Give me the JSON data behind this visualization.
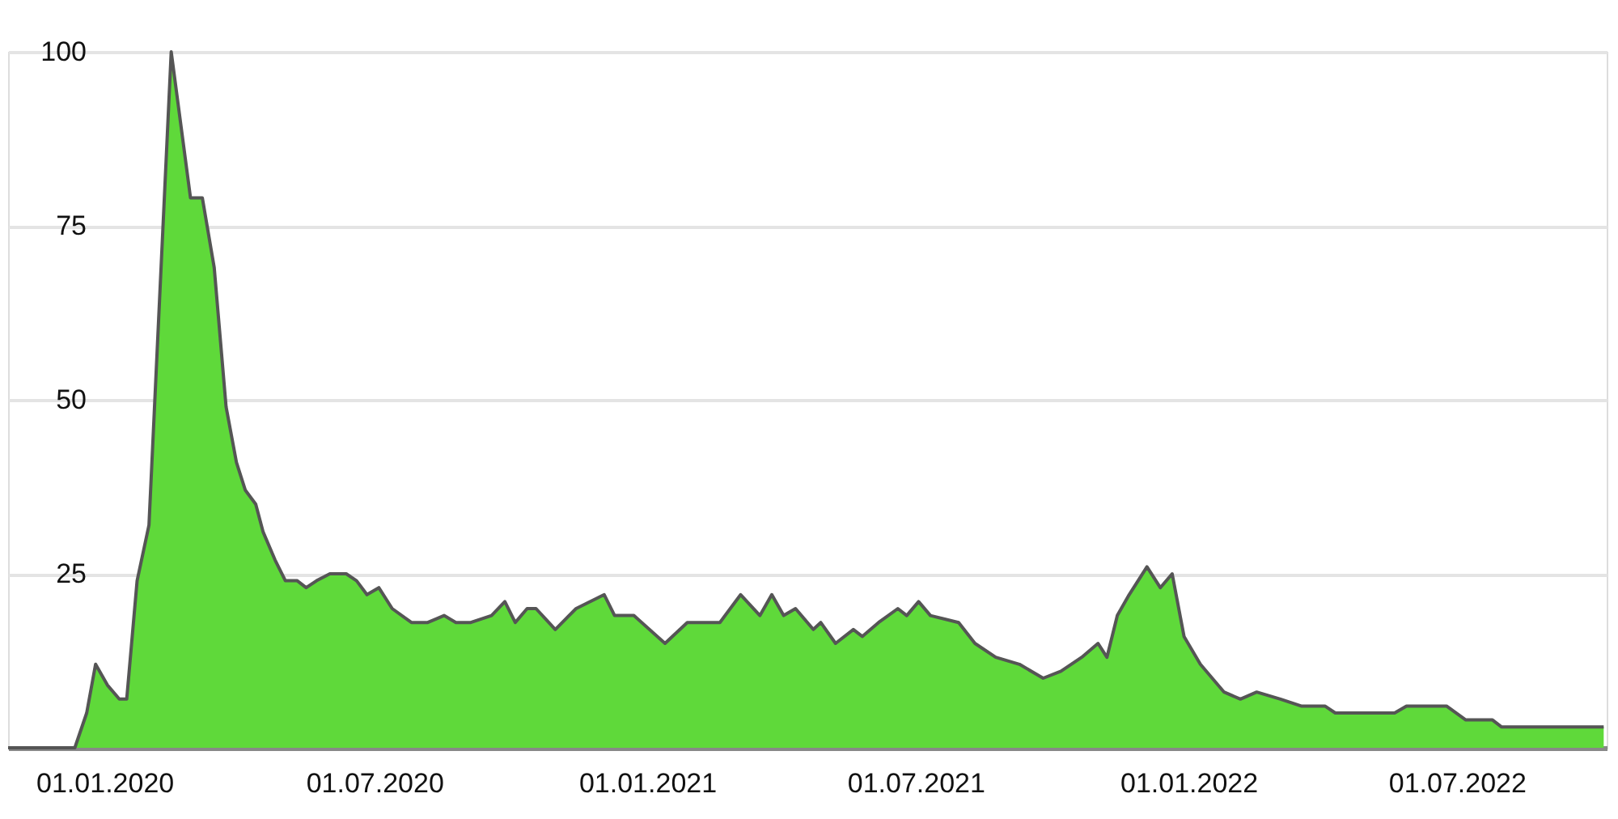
{
  "chart_data": {
    "type": "area",
    "x": [
      "2019-10-28",
      "2019-12-12",
      "2019-12-20",
      "2019-12-26",
      "2020-01-03",
      "2020-01-11",
      "2020-01-16",
      "2020-01-23",
      "2020-01-31",
      "2020-02-15",
      "2020-02-28",
      "2020-03-07",
      "2020-03-15",
      "2020-03-23",
      "2020-03-30",
      "2020-04-05",
      "2020-04-12",
      "2020-04-17",
      "2020-04-25",
      "2020-05-02",
      "2020-05-10",
      "2020-05-16",
      "2020-05-23",
      "2020-06-01",
      "2020-06-12",
      "2020-06-19",
      "2020-06-26",
      "2020-07-04",
      "2020-07-13",
      "2020-07-26",
      "2020-08-06",
      "2020-08-17",
      "2020-08-25",
      "2020-09-04",
      "2020-09-18",
      "2020-09-27",
      "2020-10-04",
      "2020-10-12",
      "2020-10-18",
      "2020-10-31",
      "2020-11-14",
      "2020-12-03",
      "2020-12-10",
      "2020-12-23",
      "2021-01-13",
      "2021-01-28",
      "2021-02-19",
      "2021-03-05",
      "2021-03-18",
      "2021-03-26",
      "2021-04-03",
      "2021-04-11",
      "2021-04-23",
      "2021-04-28",
      "2021-05-08",
      "2021-05-20",
      "2021-05-26",
      "2021-06-06",
      "2021-06-19",
      "2021-06-25",
      "2021-07-03",
      "2021-07-11",
      "2021-07-30",
      "2021-08-10",
      "2021-08-24",
      "2021-09-09",
      "2021-09-25",
      "2021-10-07",
      "2021-10-21",
      "2021-11-01",
      "2021-11-07",
      "2021-11-14",
      "2021-11-22",
      "2021-12-04",
      "2021-12-13",
      "2021-12-21",
      "2021-12-29",
      "2022-01-09",
      "2022-01-25",
      "2022-02-05",
      "2022-02-16",
      "2022-03-04",
      "2022-03-18",
      "2022-04-03",
      "2022-04-10",
      "2022-05-20",
      "2022-05-28",
      "2022-06-24",
      "2022-07-07",
      "2022-07-25",
      "2022-07-31",
      "2022-10-08"
    ],
    "series": [
      {
        "color": "#5fd93a",
        "values": [
          0,
          0,
          5,
          12,
          9,
          7,
          7,
          24,
          32,
          100,
          79,
          79,
          69,
          49,
          41,
          37,
          35,
          31,
          27,
          24,
          24,
          23,
          24,
          25,
          25,
          24,
          22,
          23,
          20,
          18,
          18,
          19,
          18,
          18,
          19,
          21,
          18,
          20,
          20,
          17,
          20,
          22,
          19,
          19,
          15,
          18,
          18,
          22,
          19,
          22,
          19,
          20,
          17,
          18,
          15,
          17,
          16,
          18,
          20,
          19,
          21,
          19,
          18,
          15,
          13,
          12,
          10,
          11,
          13,
          15,
          13,
          19,
          22,
          26,
          23,
          25,
          16,
          12,
          8,
          7,
          8,
          7,
          6,
          6,
          5,
          5,
          6,
          6,
          4,
          4,
          3,
          3
        ]
      }
    ],
    "xlim": [
      "2019-10-28",
      "2022-10-10"
    ],
    "xticks": [
      {
        "value": "2020-01-01",
        "label": "01.01.2020"
      },
      {
        "value": "2020-07-01",
        "label": "01.07.2020"
      },
      {
        "value": "2021-01-01",
        "label": "01.01.2021"
      },
      {
        "value": "2021-07-01",
        "label": "01.07.2021"
      },
      {
        "value": "2022-01-01",
        "label": "01.01.2022"
      },
      {
        "value": "2022-07-01",
        "label": "01.07.2022"
      }
    ],
    "ylim": [
      0,
      100
    ],
    "yticks": [
      25,
      50,
      75,
      100
    ],
    "grid": "y"
  }
}
